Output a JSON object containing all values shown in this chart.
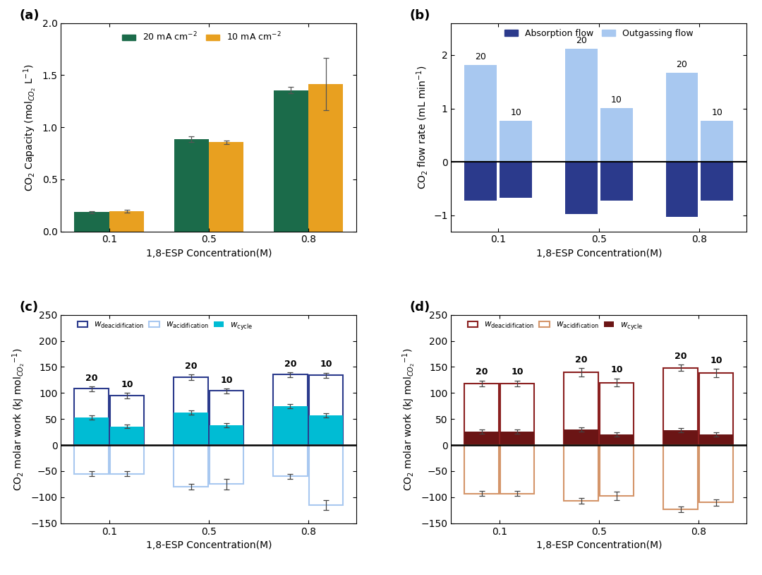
{
  "panel_a": {
    "categories": [
      "0.1",
      "0.5",
      "0.8"
    ],
    "values_20": [
      0.185,
      0.885,
      1.355
    ],
    "values_10": [
      0.195,
      0.855,
      1.415
    ],
    "err_20": [
      0.012,
      0.03,
      0.03
    ],
    "err_10": [
      0.012,
      0.015,
      0.25
    ],
    "color_20": "#1b6b4a",
    "color_10": "#e8a020",
    "ylabel": "CO$_2$ Capacity (mol$_{CO_2}$ L$^{-1}$)",
    "xlabel": "1,8-ESP Concentration(M)",
    "ylim": [
      0,
      2.0
    ],
    "yticks": [
      0.0,
      0.5,
      1.0,
      1.5,
      2.0
    ],
    "legend_20": "20 mA cm$^{-2}$",
    "legend_10": "10 mA cm$^{-2}$"
  },
  "panel_b": {
    "categories": [
      "0.1",
      "0.5",
      "0.8"
    ],
    "outgas_20": [
      1.82,
      2.12,
      1.67
    ],
    "outgas_10": [
      0.77,
      1.01,
      0.77
    ],
    "absorb_20": [
      -0.72,
      -0.97,
      -1.03
    ],
    "absorb_10": [
      -0.67,
      -0.72,
      -0.72
    ],
    "color_outgas": "#a8c8f0",
    "color_absorb": "#2b3a8c",
    "ylabel": "CO$_2$ flow rate (mL min$^{-1}$)",
    "xlabel": "1,8-ESP Concentration(M)",
    "ylim": [
      -1.3,
      2.6
    ],
    "yticks": [
      -1,
      0,
      1,
      2
    ],
    "legend_outgas": "Outgassing flow",
    "legend_absorb": "Absorption flow"
  },
  "panel_c": {
    "categories": [
      "0.1",
      "0.5",
      "0.8"
    ],
    "deacid_20": [
      108,
      130,
      135
    ],
    "deacid_10": [
      95,
      104,
      134
    ],
    "acidif_20": [
      -55,
      -80,
      -60
    ],
    "acidif_10": [
      -55,
      -75,
      -115
    ],
    "cycle_20": [
      53,
      63,
      75
    ],
    "cycle_10": [
      36,
      38,
      57
    ],
    "err_deacid_20": [
      5,
      5,
      5
    ],
    "err_deacid_10": [
      5,
      5,
      5
    ],
    "err_acidif_20": [
      5,
      5,
      5
    ],
    "err_acidif_10": [
      5,
      10,
      10
    ],
    "err_cycle_20": [
      4,
      4,
      4
    ],
    "err_cycle_10": [
      4,
      4,
      4
    ],
    "color_deacid": "#2b3a8c",
    "color_acidif_outline": "#a8c8f0",
    "color_cycle": "#00bcd4",
    "ylabel": "CO$_2$ molar work (kJ mol$_{CO_2}$$^{-1}$)",
    "xlabel": "1,8-ESP Concentration(M)",
    "ylim": [
      -150,
      250
    ],
    "yticks": [
      -150,
      -100,
      -50,
      0,
      50,
      100,
      150,
      200,
      250
    ]
  },
  "panel_d": {
    "categories": [
      "0.1",
      "0.5",
      "0.8"
    ],
    "deacid_20": [
      118,
      140,
      148
    ],
    "deacid_10": [
      118,
      120,
      138
    ],
    "acidif_20": [
      -93,
      -107,
      -123
    ],
    "acidif_10": [
      -93,
      -97,
      -110
    ],
    "cycle_20": [
      26,
      30,
      28
    ],
    "cycle_10": [
      26,
      20,
      20
    ],
    "err_deacid_20": [
      6,
      8,
      6
    ],
    "err_deacid_10": [
      6,
      8,
      8
    ],
    "err_acidif_20": [
      5,
      5,
      5
    ],
    "err_acidif_10": [
      5,
      8,
      6
    ],
    "err_cycle_20": [
      4,
      4,
      4
    ],
    "err_cycle_10": [
      4,
      4,
      4
    ],
    "color_deacid": "#8b2020",
    "color_acidif_outline": "#d4956a",
    "color_cycle": "#6b1515",
    "ylabel": "CO$_2$ molar work (kJ mol$_{CO_2}$$^{-1}$)",
    "xlabel": "1,8-ESP Concentration(M)",
    "ylim": [
      -150,
      250
    ],
    "yticks": [
      -150,
      -100,
      -50,
      0,
      50,
      100,
      150,
      200,
      250
    ]
  }
}
